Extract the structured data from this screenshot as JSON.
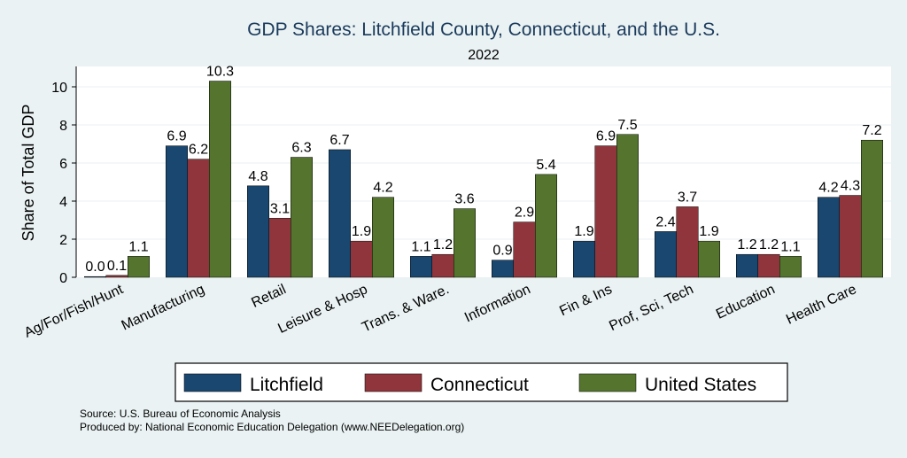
{
  "chart_data": {
    "type": "bar",
    "title": "GDP Shares: Litchfield County, Connecticut, and the U.S.",
    "subtitle": "2022",
    "ylabel": "Share of Total GDP",
    "xlabel": "",
    "ylim": [
      0,
      11
    ],
    "yticks": [
      0,
      2,
      4,
      6,
      8,
      10
    ],
    "grid": true,
    "legend_position": "bottom",
    "categories": [
      "Ag/For/Fish/Hunt",
      "Manufacturing",
      "Retail",
      "Leisure & Hosp",
      "Trans. & Ware.",
      "Information",
      "Fin & Ins",
      "Prof, Sci, Tech",
      "Education",
      "Health Care"
    ],
    "series": [
      {
        "name": "Litchfield",
        "color": "#1a476f",
        "values": [
          0.0,
          6.9,
          4.8,
          6.7,
          1.1,
          0.9,
          1.9,
          2.4,
          1.2,
          4.2
        ]
      },
      {
        "name": "Connecticut",
        "color": "#90353b",
        "values": [
          0.1,
          6.2,
          3.1,
          1.9,
          1.2,
          2.9,
          6.9,
          3.7,
          1.2,
          4.3
        ]
      },
      {
        "name": "United States",
        "color": "#55752f",
        "values": [
          1.1,
          10.3,
          6.3,
          4.2,
          3.6,
          5.4,
          7.5,
          1.9,
          1.1,
          7.2
        ]
      }
    ],
    "labels": [
      [
        "0.0",
        "6.9",
        "4.8",
        "6.7",
        "1.1",
        "0.9",
        "1.9",
        "2.4",
        "1.2",
        "4.2"
      ],
      [
        "0.1",
        "6.2",
        "3.1",
        "1.9",
        "1.2",
        "2.9",
        "6.9",
        "3.7",
        "1.2",
        "4.3"
      ],
      [
        "1.1",
        "10.3",
        "6.3",
        "4.2",
        "3.6",
        "5.4",
        "7.5",
        "1.9",
        "1.1",
        "7.2"
      ]
    ]
  },
  "notes": {
    "source": "Source: U.S. Bureau of Economic Analysis",
    "produced_by": "Produced by: National Economic Education Delegation (www.NEEDelegation.org)"
  }
}
